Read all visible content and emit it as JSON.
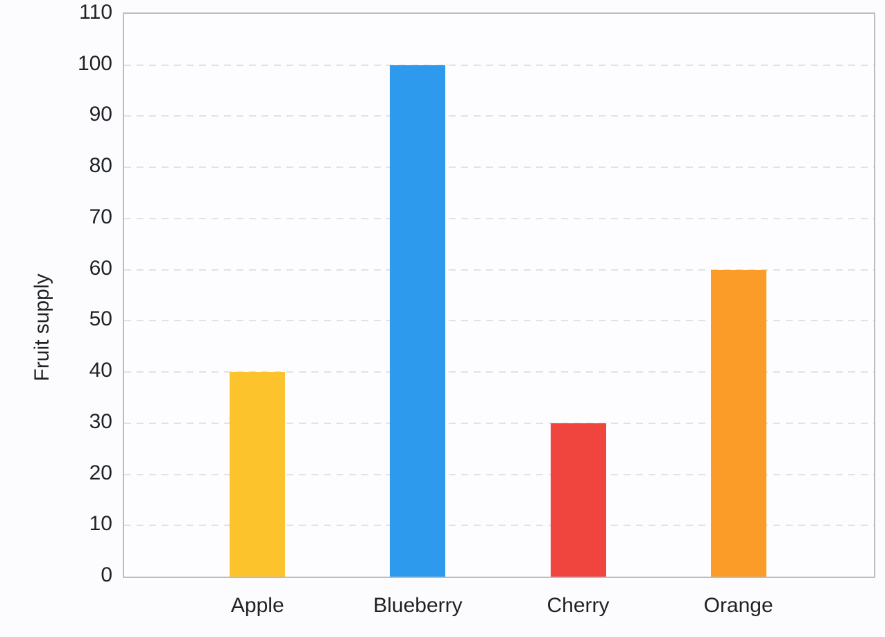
{
  "chart_data": {
    "type": "bar",
    "categories": [
      "Apple",
      "Blueberry",
      "Cherry",
      "Orange"
    ],
    "values": [
      40,
      100,
      30,
      60
    ],
    "bar_colors": [
      "#fcc32d",
      "#2e9aee",
      "#f0453f",
      "#fa9c27"
    ],
    "title": "",
    "xlabel": "",
    "ylabel": "Fruit supply",
    "ylim": [
      0,
      110
    ],
    "yticks": [
      0,
      10,
      20,
      30,
      40,
      50,
      60,
      70,
      80,
      90,
      100,
      110
    ],
    "grid": "horizontal-dashed",
    "legend": "none"
  },
  "colors": {
    "background": "#fcfcfe",
    "plot_background": "#fdfdff",
    "plot_border": "#bbbbc0",
    "gridline": "#e2e2e6",
    "text": "#1e2126"
  }
}
